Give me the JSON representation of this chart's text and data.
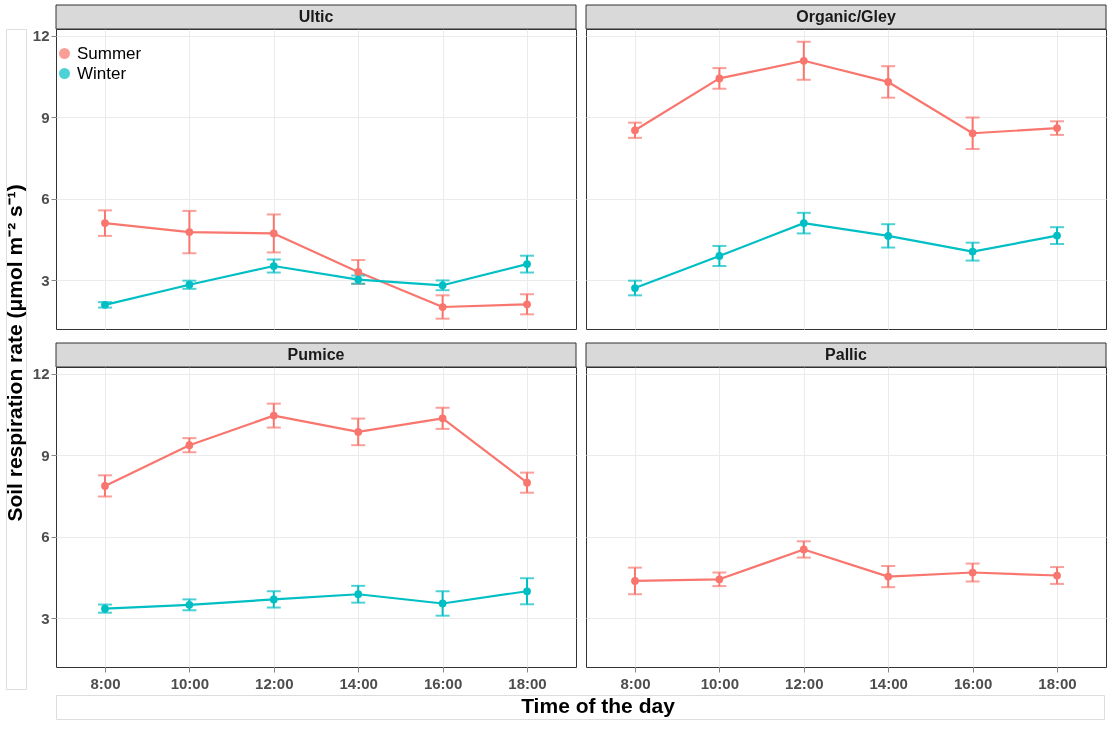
{
  "chart_data": [
    {
      "type": "line",
      "title": "Ultic",
      "ylabel": "Soil respiration rate (μmol m⁻² s⁻¹)",
      "categories": [
        "8:00",
        "10:00",
        "12:00",
        "14:00",
        "16:00",
        "18:00"
      ],
      "ylim": [
        1.2,
        12.25
      ],
      "yticks": [
        3,
        6,
        9,
        12
      ],
      "grid": true,
      "legend": "top left",
      "marker": "circle",
      "line_style": "solid",
      "tick_labels": "y",
      "series": [
        {
          "name": "Summer",
          "color": "#f8766d",
          "values": [
            5.1,
            4.77,
            4.72,
            3.3,
            2.01,
            2.11
          ],
          "errors": [
            0.47,
            0.78,
            0.7,
            0.44,
            0.43,
            0.37
          ]
        },
        {
          "name": "Winter",
          "color": "#00bfc4",
          "values": [
            2.09,
            2.83,
            3.52,
            3.02,
            2.81,
            3.59
          ],
          "errors": [
            0.1,
            0.15,
            0.24,
            0.15,
            0.18,
            0.31
          ]
        }
      ]
    },
    {
      "type": "line",
      "title": "Organic/Gley",
      "categories": [
        "8:00",
        "10:00",
        "12:00",
        "14:00",
        "16:00",
        "18:00"
      ],
      "ylim": [
        1.2,
        12.25
      ],
      "yticks": [
        3,
        6,
        9,
        12
      ],
      "grid": true,
      "marker": "circle",
      "line_style": "solid",
      "tick_labels": false,
      "series": [
        {
          "name": "Summer",
          "color": "#f8766d",
          "values": [
            8.52,
            10.43,
            11.08,
            10.3,
            8.41,
            8.6
          ],
          "errors": [
            0.28,
            0.38,
            0.7,
            0.58,
            0.58,
            0.25
          ]
        },
        {
          "name": "Winter",
          "color": "#00bfc4",
          "values": [
            2.71,
            3.89,
            5.1,
            4.63,
            4.05,
            4.64
          ],
          "errors": [
            0.27,
            0.37,
            0.38,
            0.43,
            0.33,
            0.31
          ]
        }
      ]
    },
    {
      "type": "line",
      "title": "Pumice",
      "xlabel": "Time of the day",
      "categories": [
        "8:00",
        "10:00",
        "12:00",
        "14:00",
        "16:00",
        "18:00"
      ],
      "ylim": [
        1.2,
        12.25
      ],
      "yticks": [
        3,
        6,
        9,
        12
      ],
      "grid": true,
      "marker": "circle",
      "line_style": "solid",
      "series": [
        {
          "name": "Summer",
          "color": "#f8766d",
          "values": [
            7.87,
            9.37,
            10.46,
            9.86,
            10.36,
            7.99
          ],
          "errors": [
            0.39,
            0.26,
            0.44,
            0.49,
            0.39,
            0.37
          ]
        },
        {
          "name": "Winter",
          "color": "#00bfc4",
          "values": [
            3.35,
            3.49,
            3.69,
            3.88,
            3.54,
            3.99
          ],
          "errors": [
            0.15,
            0.2,
            0.3,
            0.31,
            0.45,
            0.48
          ]
        }
      ]
    },
    {
      "type": "line",
      "title": "Pallic",
      "categories": [
        "8:00",
        "10:00",
        "12:00",
        "14:00",
        "16:00",
        "18:00"
      ],
      "ylim": [
        1.2,
        12.25
      ],
      "yticks": [
        3,
        6,
        9,
        12
      ],
      "grid": true,
      "marker": "circle",
      "line_style": "solid",
      "tick_labels": "x",
      "series": [
        {
          "name": "Summer",
          "color": "#f8766d",
          "values": [
            4.37,
            4.43,
            5.53,
            4.53,
            4.68,
            4.57
          ],
          "errors": [
            0.49,
            0.25,
            0.3,
            0.39,
            0.33,
            0.31
          ]
        }
      ]
    }
  ]
}
